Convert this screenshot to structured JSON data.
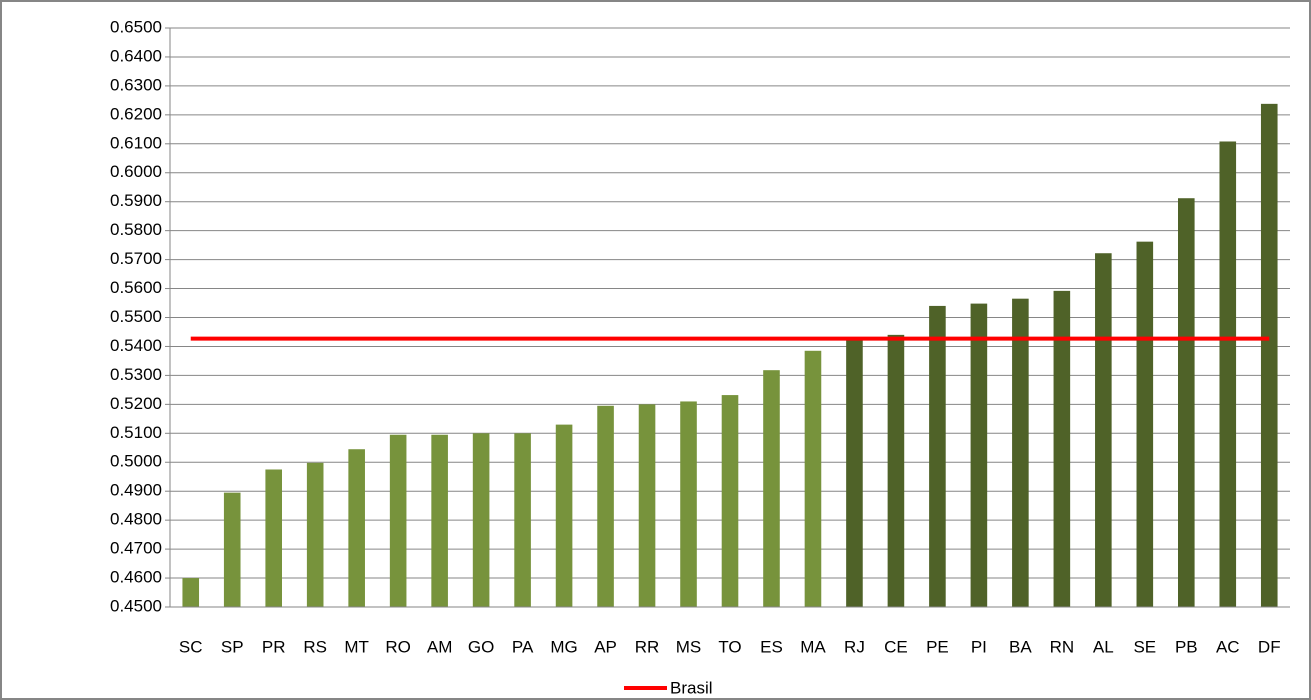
{
  "chart_data": {
    "type": "bar",
    "categories": [
      "SC",
      "SP",
      "PR",
      "RS",
      "MT",
      "RO",
      "AM",
      "GO",
      "PA",
      "MG",
      "AP",
      "RR",
      "MS",
      "TO",
      "ES",
      "MA",
      "RJ",
      "CE",
      "PE",
      "PI",
      "BA",
      "RN",
      "AL",
      "SE",
      "PB",
      "AC",
      "DF"
    ],
    "values": [
      0.46,
      0.4895,
      0.4975,
      0.4998,
      0.5045,
      0.5095,
      0.5095,
      0.51,
      0.51,
      0.513,
      0.5195,
      0.52,
      0.521,
      0.5232,
      0.5318,
      0.5385,
      0.543,
      0.544,
      0.554,
      0.5548,
      0.5565,
      0.5592,
      0.5722,
      0.5762,
      0.5912,
      0.6108,
      0.6238
    ],
    "colors": [
      "#77933c",
      "#77933c",
      "#77933c",
      "#77933c",
      "#77933c",
      "#77933c",
      "#77933c",
      "#77933c",
      "#77933c",
      "#77933c",
      "#77933c",
      "#77933c",
      "#77933c",
      "#77933c",
      "#77933c",
      "#77933c",
      "#4f6228",
      "#4f6228",
      "#4f6228",
      "#4f6228",
      "#4f6228",
      "#4f6228",
      "#4f6228",
      "#4f6228",
      "#4f6228",
      "#4f6228",
      "#4f6228"
    ],
    "reference_line": {
      "name": "Brasil",
      "value": 0.5427,
      "color": "#ff0000"
    },
    "ylim": [
      0.45,
      0.65
    ],
    "yticks": [
      {
        "value": 0.45,
        "label": "0.4500"
      },
      {
        "value": 0.46,
        "label": "0.4600"
      },
      {
        "value": 0.47,
        "label": "0.4700"
      },
      {
        "value": 0.48,
        "label": "0.4800"
      },
      {
        "value": 0.49,
        "label": "0.4900"
      },
      {
        "value": 0.5,
        "label": "0.5000"
      },
      {
        "value": 0.51,
        "label": "0.5100"
      },
      {
        "value": 0.52,
        "label": "0.5200"
      },
      {
        "value": 0.53,
        "label": "0.5300"
      },
      {
        "value": 0.54,
        "label": "0.5400"
      },
      {
        "value": 0.55,
        "label": "0.5500"
      },
      {
        "value": 0.56,
        "label": "0.5600"
      },
      {
        "value": 0.57,
        "label": "0.5700"
      },
      {
        "value": 0.58,
        "label": "0.5800"
      },
      {
        "value": 0.59,
        "label": "0.5900"
      },
      {
        "value": 0.6,
        "label": "0.6000"
      },
      {
        "value": 0.61,
        "label": "0.6100"
      },
      {
        "value": 0.62,
        "label": "0.6200"
      },
      {
        "value": 0.63,
        "label": "0.6300"
      },
      {
        "value": 0.64,
        "label": "0.6400"
      },
      {
        "value": 0.65,
        "label": "0.6500"
      }
    ],
    "grid": true
  }
}
